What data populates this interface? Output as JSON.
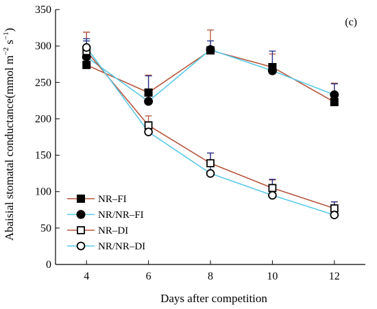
{
  "chart_data": {
    "type": "line",
    "panel_label": "(c)",
    "xlabel": "Days after competition",
    "ylabel_main": "Abaisial stomatal conductance(mmol m",
    "ylabel_sup1": "−2",
    "ylabel_mid": " s",
    "ylabel_sup2": "−1",
    "ylabel_end": ")",
    "x": [
      4,
      6,
      8,
      10,
      12
    ],
    "xticks": [
      "4",
      "6",
      "8",
      "10",
      "12"
    ],
    "xlim": [
      3,
      13
    ],
    "ylim": [
      0,
      350
    ],
    "yticks": [
      "0",
      "50",
      "100",
      "150",
      "200",
      "250",
      "300",
      "350"
    ],
    "legend_position": "lower-left",
    "series": [
      {
        "name": "NR–FI",
        "values": [
          274,
          236,
          294,
          271,
          223
        ],
        "errors": [
          45,
          24,
          28,
          18,
          26
        ],
        "marker": "filled-square",
        "line_color": "#b5553c",
        "err_color": "#b5553c"
      },
      {
        "name": "NR/NR–FI",
        "values": [
          285,
          224,
          295,
          266,
          233
        ],
        "errors": [
          22,
          35,
          12,
          27,
          15
        ],
        "marker": "filled-circle",
        "line_color": "#5bc8e6",
        "err_color": "#1c2e8c"
      },
      {
        "name": "NR–DI",
        "values": [
          293,
          191,
          139,
          105,
          77
        ],
        "errors": [
          26,
          13,
          14,
          11,
          9
        ],
        "marker": "open-square",
        "line_color": "#b5553c",
        "err_color": "#b5553c"
      },
      {
        "name": "NR/NR–DI",
        "values": [
          298,
          182,
          125,
          95,
          68
        ],
        "errors": [
          12,
          10,
          28,
          22,
          18
        ],
        "marker": "open-circle",
        "line_color": "#5bc8e6",
        "err_color": "#1c2e8c"
      }
    ]
  }
}
